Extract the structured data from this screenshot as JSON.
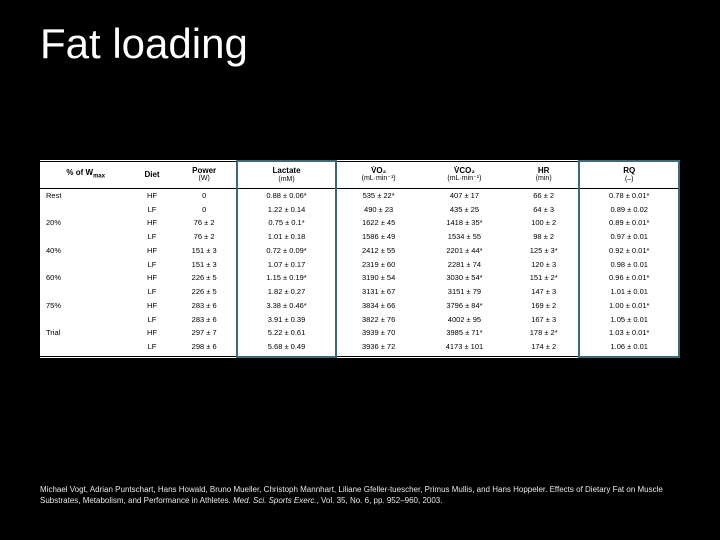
{
  "title": "Fat loading",
  "background_color": "#000000",
  "title_color": "#ffffff",
  "title_fontsize": 42,
  "highlight_border_color": "#3a6a7a",
  "table": {
    "columns": [
      {
        "label": "% of W",
        "sub": "max",
        "unit": "",
        "highlight": false
      },
      {
        "label": "Diet",
        "unit": "",
        "highlight": false
      },
      {
        "label": "Power",
        "unit": "(W)",
        "highlight": false
      },
      {
        "label": "Lactate",
        "unit": "(mM)",
        "highlight": true
      },
      {
        "label": "V̇O₂",
        "unit": "(mL·min⁻¹)",
        "highlight": false
      },
      {
        "label": "V̇CO₂",
        "unit": "(mL·min⁻¹)",
        "highlight": false
      },
      {
        "label": "HR",
        "unit": "(min)",
        "highlight": false
      },
      {
        "label": "RQ",
        "unit": "(–)",
        "highlight": true
      }
    ],
    "groups": [
      {
        "level": "Rest",
        "rows": [
          {
            "diet": "HF",
            "power": "0",
            "lactate": "0.88 ± 0.06*",
            "vo2": "535 ± 22*",
            "vco2": "407 ± 17",
            "hr": "66 ± 2",
            "rq": "0.78 ± 0.01*"
          },
          {
            "diet": "LF",
            "power": "0",
            "lactate": "1.22 ± 0.14",
            "vo2": "490 ± 23",
            "vco2": "435 ± 25",
            "hr": "64 ± 3",
            "rq": "0.89 ± 0.02"
          }
        ]
      },
      {
        "level": "20%",
        "rows": [
          {
            "diet": "HF",
            "power": "76 ± 2",
            "lactate": "0.75 ± 0.1*",
            "vo2": "1622 ± 45",
            "vco2": "1418 ± 35*",
            "hr": "100 ± 2",
            "rq": "0.89 ± 0.01*"
          },
          {
            "diet": "LF",
            "power": "76 ± 2",
            "lactate": "1.01 ± 0.18",
            "vo2": "1586 ± 49",
            "vco2": "1534 ± 55",
            "hr": "98 ± 2",
            "rq": "0.97 ± 0.01"
          }
        ]
      },
      {
        "level": "40%",
        "rows": [
          {
            "diet": "HF",
            "power": "151 ± 3",
            "lactate": "0.72 ± 0.09*",
            "vo2": "2412 ± 55",
            "vco2": "2201 ± 44*",
            "hr": "125 ± 3*",
            "rq": "0.92 ± 0.01*"
          },
          {
            "diet": "LF",
            "power": "151 ± 3",
            "lactate": "1.07 ± 0.17",
            "vo2": "2319 ± 60",
            "vco2": "2281 ± 74",
            "hr": "120 ± 3",
            "rq": "0.98 ± 0.01"
          }
        ]
      },
      {
        "level": "60%",
        "rows": [
          {
            "diet": "HF",
            "power": "226 ± 5",
            "lactate": "1.15 ± 0.19*",
            "vo2": "3190 ± 54",
            "vco2": "3030 ± 54*",
            "hr": "151 ± 2*",
            "rq": "0.96 ± 0.01*"
          },
          {
            "diet": "LF",
            "power": "226 ± 5",
            "lactate": "1.82 ± 0.27",
            "vo2": "3131 ± 67",
            "vco2": "3151 ± 79",
            "hr": "147 ± 3",
            "rq": "1.01 ± 0.01"
          }
        ]
      },
      {
        "level": "75%",
        "rows": [
          {
            "diet": "HF",
            "power": "283 ± 6",
            "lactate": "3.38 ± 0.46*",
            "vo2": "3834 ± 66",
            "vco2": "3796 ± 84*",
            "hr": "169 ± 2",
            "rq": "1.00 ± 0.01*"
          },
          {
            "diet": "LF",
            "power": "283 ± 6",
            "lactate": "3.91 ± 0.39",
            "vo2": "3822 ± 76",
            "vco2": "4002 ± 95",
            "hr": "167 ± 3",
            "rq": "1.05 ± 0.01"
          }
        ]
      },
      {
        "level": "Trial",
        "rows": [
          {
            "diet": "HF",
            "power": "297 ± 7",
            "lactate": "5.22 ± 0.61",
            "vo2": "3939 ± 70",
            "vco2": "3985 ± 71*",
            "hr": "178 ± 2*",
            "rq": "1.03 ± 0.01*"
          },
          {
            "diet": "LF",
            "power": "298 ± 6",
            "lactate": "5.68 ± 0.49",
            "vo2": "3936 ± 72",
            "vco2": "4173 ± 101",
            "hr": "174 ± 2",
            "rq": "1.06 ± 0.01"
          }
        ]
      }
    ]
  },
  "citation": {
    "authors": "Michael Vogt, Adrian Puntschart, Hans Howald, Bruno Mueller, Christoph Mannhart, Liliane Gfeller-tuescher, Primus Mullis, and Hans Hoppeler.",
    "title": "Effects of Dietary Fat on Muscle Substrates, Metabolism, and Performance in Athletes.",
    "journal": "Med. Sci. Sports Exerc.",
    "volume": ", Vol. 35, No. 6, pp. 952–960, 2003."
  }
}
